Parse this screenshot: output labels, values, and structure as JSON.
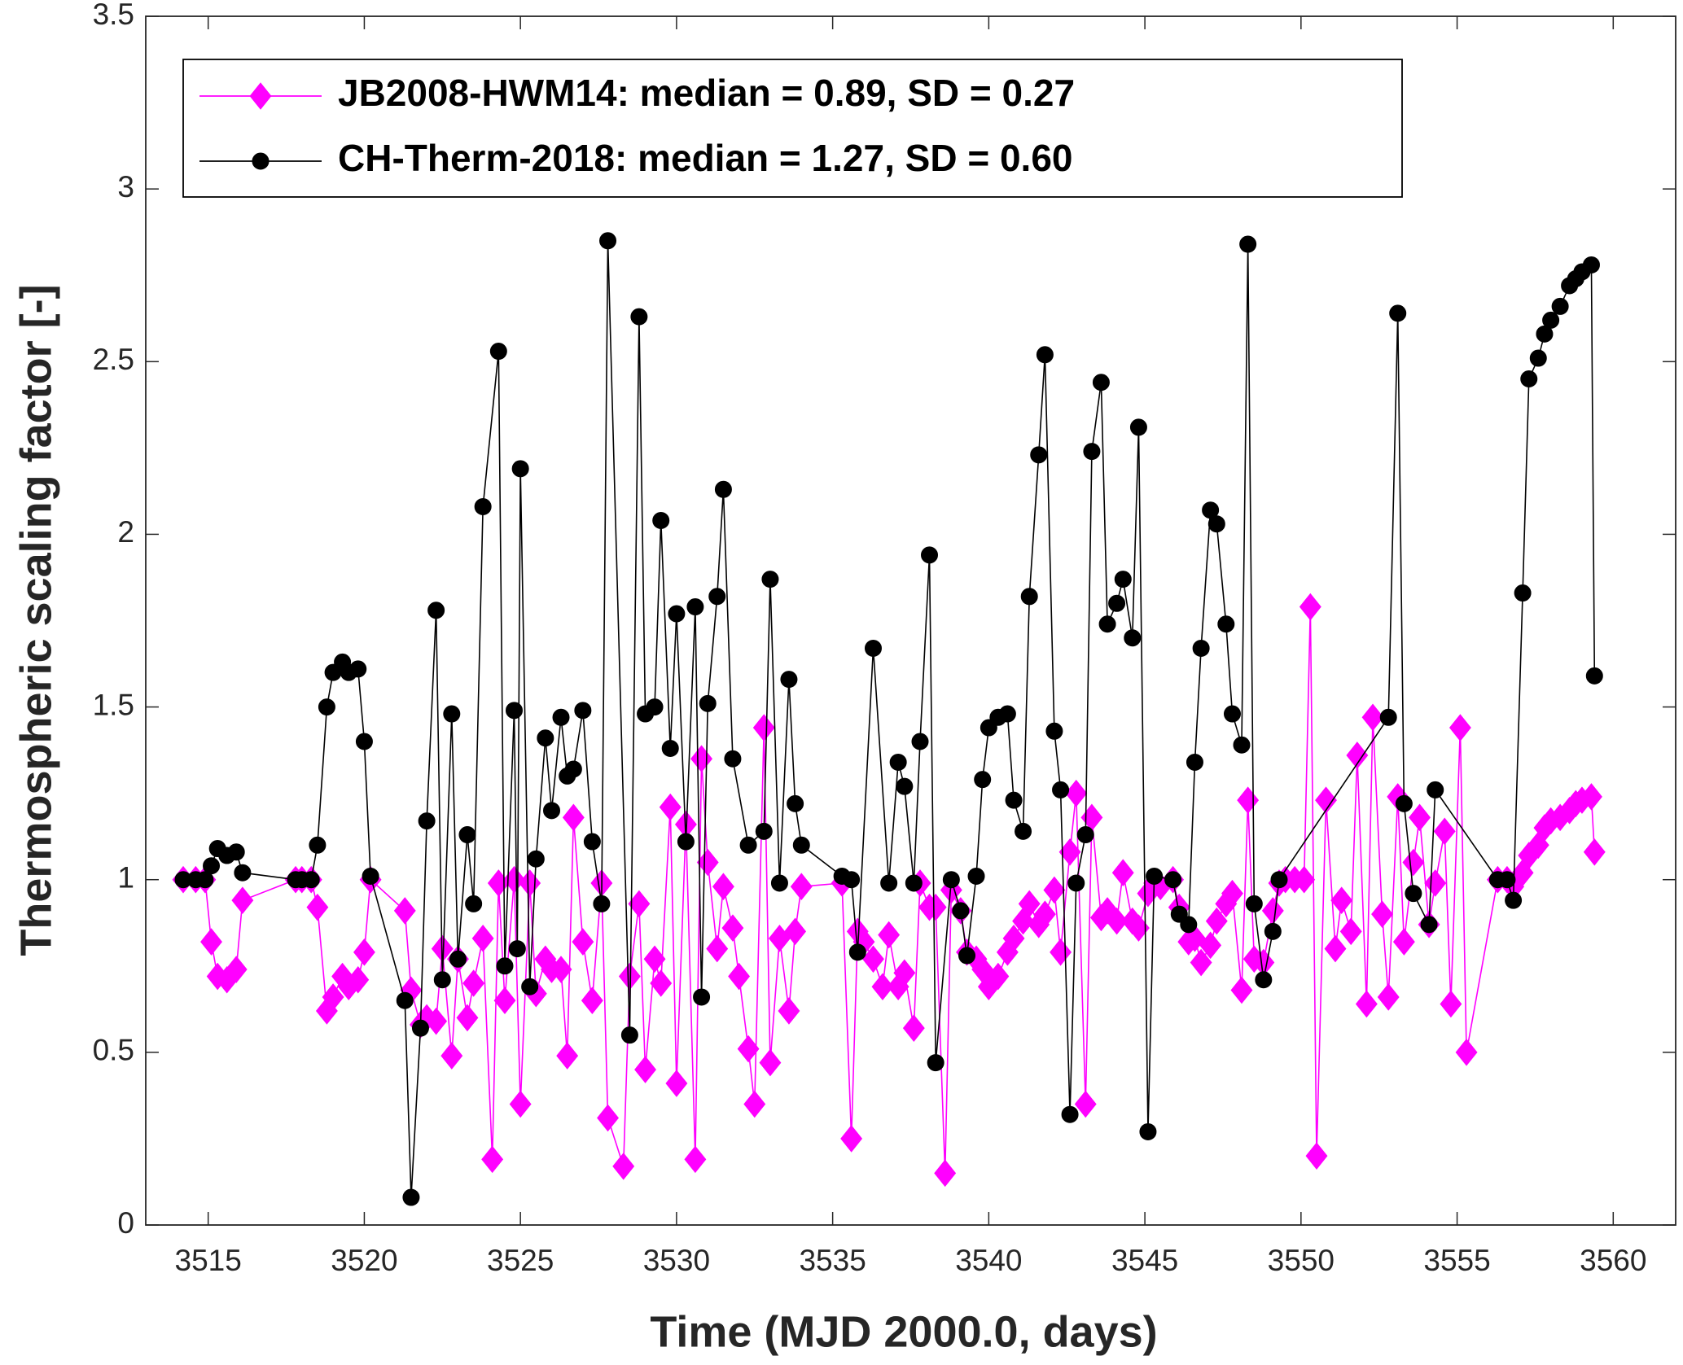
{
  "chart_data": {
    "type": "line",
    "xlabel": "Time (MJD 2000.0, days)",
    "ylabel": "Thermospheric scaling factor [-]",
    "xlim": [
      3513,
      3562
    ],
    "xticks": [
      3515,
      3520,
      3525,
      3530,
      3535,
      3540,
      3545,
      3550,
      3555,
      3560
    ],
    "ylim": [
      0,
      3.5
    ],
    "yticks": [
      0,
      0.5,
      1,
      1.5,
      2,
      2.5,
      3,
      3.5
    ],
    "grid": false,
    "legend": "upper left",
    "series": [
      {
        "name": "JB2008-HWM14: median = 0.89, SD = 0.27",
        "color": "#ff00ff",
        "marker": "diamond",
        "x": [
          3514.2,
          3514.6,
          3514.9,
          3515.1,
          3515.3,
          3515.6,
          3515.9,
          3516.1,
          3517.8,
          3518.0,
          3518.3,
          3518.5,
          3518.8,
          3519.0,
          3519.3,
          3519.5,
          3519.8,
          3520.0,
          3520.2,
          3521.3,
          3521.5,
          3521.8,
          3522.0,
          3522.3,
          3522.5,
          3522.8,
          3523.0,
          3523.3,
          3523.5,
          3523.8,
          3524.1,
          3524.3,
          3524.5,
          3524.8,
          3525.0,
          3525.3,
          3525.5,
          3525.8,
          3526.0,
          3526.3,
          3526.5,
          3526.7,
          3527.0,
          3527.3,
          3527.6,
          3527.8,
          3528.3,
          3528.5,
          3528.8,
          3529.0,
          3529.3,
          3529.5,
          3529.8,
          3530.0,
          3530.3,
          3530.6,
          3530.8,
          3531.0,
          3531.3,
          3531.5,
          3531.8,
          3532.0,
          3532.3,
          3532.5,
          3532.8,
          3533.0,
          3533.3,
          3533.6,
          3533.8,
          3534.0,
          3535.3,
          3535.6,
          3535.8,
          3536.0,
          3536.3,
          3536.6,
          3536.8,
          3537.1,
          3537.3,
          3537.6,
          3537.8,
          3538.1,
          3538.3,
          3538.6,
          3538.8,
          3539.1,
          3539.3,
          3539.6,
          3539.8,
          3540.0,
          3540.3,
          3540.6,
          3540.8,
          3541.1,
          3541.3,
          3541.6,
          3541.8,
          3542.1,
          3542.3,
          3542.6,
          3542.8,
          3543.1,
          3543.3,
          3543.6,
          3543.8,
          3544.1,
          3544.3,
          3544.6,
          3544.8,
          3545.1,
          3545.3,
          3545.5,
          3545.9,
          3546.1,
          3546.4,
          3546.6,
          3546.8,
          3547.1,
          3547.3,
          3547.6,
          3547.8,
          3548.1,
          3548.3,
          3548.5,
          3548.8,
          3549.1,
          3549.3,
          3549.5,
          3549.8,
          3550.1,
          3550.3,
          3550.5,
          3550.8,
          3551.1,
          3551.3,
          3551.6,
          3551.8,
          3552.1,
          3552.3,
          3552.6,
          3552.8,
          3553.1,
          3553.3,
          3553.6,
          3553.8,
          3554.1,
          3554.3,
          3554.6,
          3554.8,
          3555.1,
          3555.3,
          3556.3,
          3556.6,
          3556.8,
          3557.1,
          3557.3,
          3557.6,
          3557.8,
          3558.0,
          3558.3,
          3558.6,
          3558.8,
          3559.0,
          3559.3,
          3559.4
        ],
        "values": [
          1.0,
          1.0,
          1.0,
          0.82,
          0.72,
          0.71,
          0.74,
          0.94,
          1.0,
          1.0,
          1.0,
          0.92,
          0.62,
          0.66,
          0.72,
          0.69,
          0.71,
          0.79,
          1.0,
          0.91,
          0.68,
          0.58,
          0.6,
          0.59,
          0.8,
          0.49,
          0.77,
          0.6,
          0.7,
          0.83,
          0.19,
          0.99,
          0.65,
          1.0,
          0.35,
          0.99,
          0.67,
          0.77,
          0.74,
          0.74,
          0.49,
          1.18,
          0.82,
          0.65,
          0.99,
          0.31,
          0.17,
          0.72,
          0.93,
          0.45,
          0.77,
          0.7,
          1.21,
          0.41,
          1.16,
          0.19,
          1.35,
          1.05,
          0.8,
          0.98,
          0.86,
          0.72,
          0.51,
          0.35,
          1.44,
          0.47,
          0.83,
          0.62,
          0.85,
          0.98,
          0.99,
          0.25,
          0.85,
          0.82,
          0.77,
          0.69,
          0.84,
          0.69,
          0.73,
          0.57,
          0.99,
          0.92,
          0.92,
          0.15,
          0.97,
          0.91,
          0.79,
          0.77,
          0.74,
          0.69,
          0.72,
          0.79,
          0.83,
          0.88,
          0.93,
          0.87,
          0.9,
          0.97,
          0.79,
          1.08,
          1.25,
          0.35,
          1.18,
          0.89,
          0.91,
          0.88,
          1.02,
          0.88,
          0.86,
          0.96,
          0.99,
          0.98,
          1.0,
          0.92,
          0.82,
          0.83,
          0.76,
          0.81,
          0.88,
          0.93,
          0.96,
          0.68,
          1.23,
          0.77,
          0.76,
          0.91,
          0.99,
          1.0,
          1.0,
          1.0,
          1.79,
          0.2,
          1.23,
          0.8,
          0.94,
          0.85,
          1.36,
          0.64,
          1.47,
          0.9,
          0.66,
          1.24,
          0.82,
          1.05,
          1.18,
          0.87,
          0.99,
          1.14,
          0.64,
          1.44,
          0.5,
          1.0,
          1.0,
          0.98,
          1.02,
          1.07,
          1.1,
          1.15,
          1.17,
          1.18,
          1.2,
          1.22,
          1.23,
          1.24,
          1.08
        ]
      },
      {
        "name": "CH-Therm-2018: median = 1.27, SD = 0.60",
        "color": "#000000",
        "marker": "circle",
        "x": [
          3514.2,
          3514.6,
          3514.9,
          3515.1,
          3515.3,
          3515.6,
          3515.9,
          3516.1,
          3517.8,
          3518.0,
          3518.3,
          3518.5,
          3518.8,
          3519.0,
          3519.3,
          3519.5,
          3519.8,
          3520.0,
          3520.2,
          3521.3,
          3521.5,
          3521.8,
          3522.0,
          3522.3,
          3522.5,
          3522.8,
          3523.0,
          3523.3,
          3523.5,
          3523.8,
          3524.3,
          3524.5,
          3524.8,
          3524.9,
          3525.0,
          3525.3,
          3525.5,
          3525.8,
          3526.0,
          3526.3,
          3526.5,
          3526.7,
          3527.0,
          3527.3,
          3527.6,
          3527.8,
          3528.5,
          3528.8,
          3529.0,
          3529.3,
          3529.5,
          3529.8,
          3530.0,
          3530.3,
          3530.6,
          3530.8,
          3531.0,
          3531.3,
          3531.5,
          3531.8,
          3532.3,
          3532.8,
          3533.0,
          3533.3,
          3533.6,
          3533.8,
          3534.0,
          3535.3,
          3535.6,
          3535.8,
          3536.3,
          3536.8,
          3537.1,
          3537.3,
          3537.6,
          3537.8,
          3538.1,
          3538.3,
          3538.8,
          3539.1,
          3539.3,
          3539.6,
          3539.8,
          3540.0,
          3540.3,
          3540.6,
          3540.8,
          3541.1,
          3541.3,
          3541.6,
          3541.8,
          3542.1,
          3542.3,
          3542.6,
          3542.8,
          3543.1,
          3543.3,
          3543.6,
          3543.8,
          3544.1,
          3544.3,
          3544.6,
          3544.8,
          3545.1,
          3545.3,
          3545.9,
          3546.1,
          3546.4,
          3546.6,
          3546.8,
          3547.1,
          3547.3,
          3547.6,
          3547.8,
          3548.1,
          3548.3,
          3548.5,
          3548.8,
          3549.1,
          3549.3,
          3552.8,
          3553.1,
          3553.3,
          3553.6,
          3554.1,
          3554.3,
          3556.3,
          3556.6,
          3556.8,
          3557.1,
          3557.3,
          3557.6,
          3557.8,
          3558.0,
          3558.3,
          3558.6,
          3558.8,
          3559.0,
          3559.3,
          3559.4
        ],
        "values": [
          1.0,
          1.0,
          1.0,
          1.04,
          1.09,
          1.07,
          1.08,
          1.02,
          1.0,
          1.0,
          1.0,
          1.1,
          1.5,
          1.6,
          1.63,
          1.6,
          1.61,
          1.4,
          1.01,
          0.65,
          0.08,
          0.57,
          1.17,
          1.78,
          0.71,
          1.48,
          0.77,
          1.13,
          0.93,
          2.08,
          2.53,
          0.75,
          1.49,
          0.8,
          2.19,
          0.69,
          1.06,
          1.41,
          1.2,
          1.47,
          1.3,
          1.32,
          1.49,
          1.11,
          0.93,
          2.85,
          0.55,
          2.63,
          1.48,
          1.5,
          2.04,
          1.38,
          1.77,
          1.11,
          1.79,
          0.66,
          1.51,
          1.82,
          2.13,
          1.35,
          1.1,
          1.14,
          1.87,
          0.99,
          1.58,
          1.22,
          1.1,
          1.01,
          1.0,
          0.79,
          1.67,
          0.99,
          1.34,
          1.27,
          0.99,
          1.4,
          1.94,
          0.47,
          1.0,
          0.91,
          0.78,
          1.01,
          1.29,
          1.44,
          1.47,
          1.48,
          1.23,
          1.14,
          1.82,
          2.23,
          2.52,
          1.43,
          1.26,
          0.32,
          0.99,
          1.13,
          2.24,
          2.44,
          1.74,
          1.8,
          1.87,
          1.7,
          2.31,
          0.27,
          1.01,
          1.0,
          0.9,
          0.87,
          1.34,
          1.67,
          2.07,
          2.03,
          1.74,
          1.48,
          1.39,
          2.84,
          0.93,
          0.71,
          0.85,
          1.0,
          1.47,
          2.64,
          1.22,
          0.96,
          0.87,
          1.26,
          1.0,
          1.0,
          0.94,
          1.83,
          2.45,
          2.51,
          2.58,
          2.62,
          2.66,
          2.72,
          2.74,
          2.76,
          2.78,
          1.59
        ]
      }
    ]
  }
}
